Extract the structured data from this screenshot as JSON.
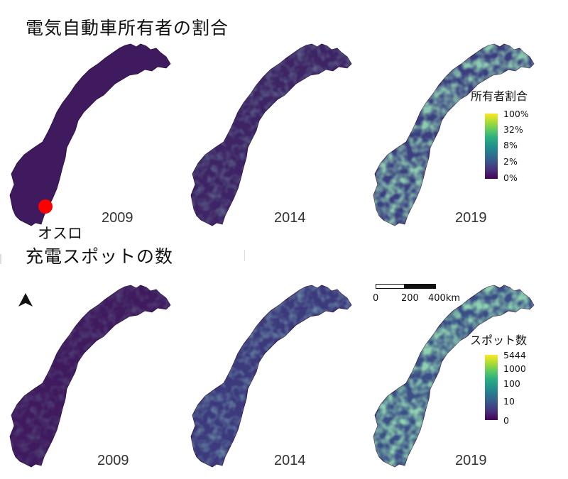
{
  "titles": {
    "ev_share": "電気自動車所有者の割合",
    "charging": "充電スポットの数"
  },
  "years": [
    "2009",
    "2014",
    "2019"
  ],
  "oslo_label": "オスロ",
  "legends": {
    "ev_share": {
      "title": "所有者割合",
      "ticks": [
        "100%",
        "32%",
        "8%",
        "2%",
        "0%"
      ]
    },
    "charging": {
      "title": "スポット数",
      "ticks": [
        "5444",
        "1000",
        "100",
        "10",
        "0"
      ]
    }
  },
  "scalebar": {
    "labels": [
      "0",
      "200",
      "400km"
    ]
  },
  "colors": {
    "viridis_low": "#440154",
    "viridis_high": "#fde725",
    "oslo_marker": "#ff0000"
  },
  "icons": [
    "north-arrow-icon",
    "oslo-marker-icon"
  ]
}
